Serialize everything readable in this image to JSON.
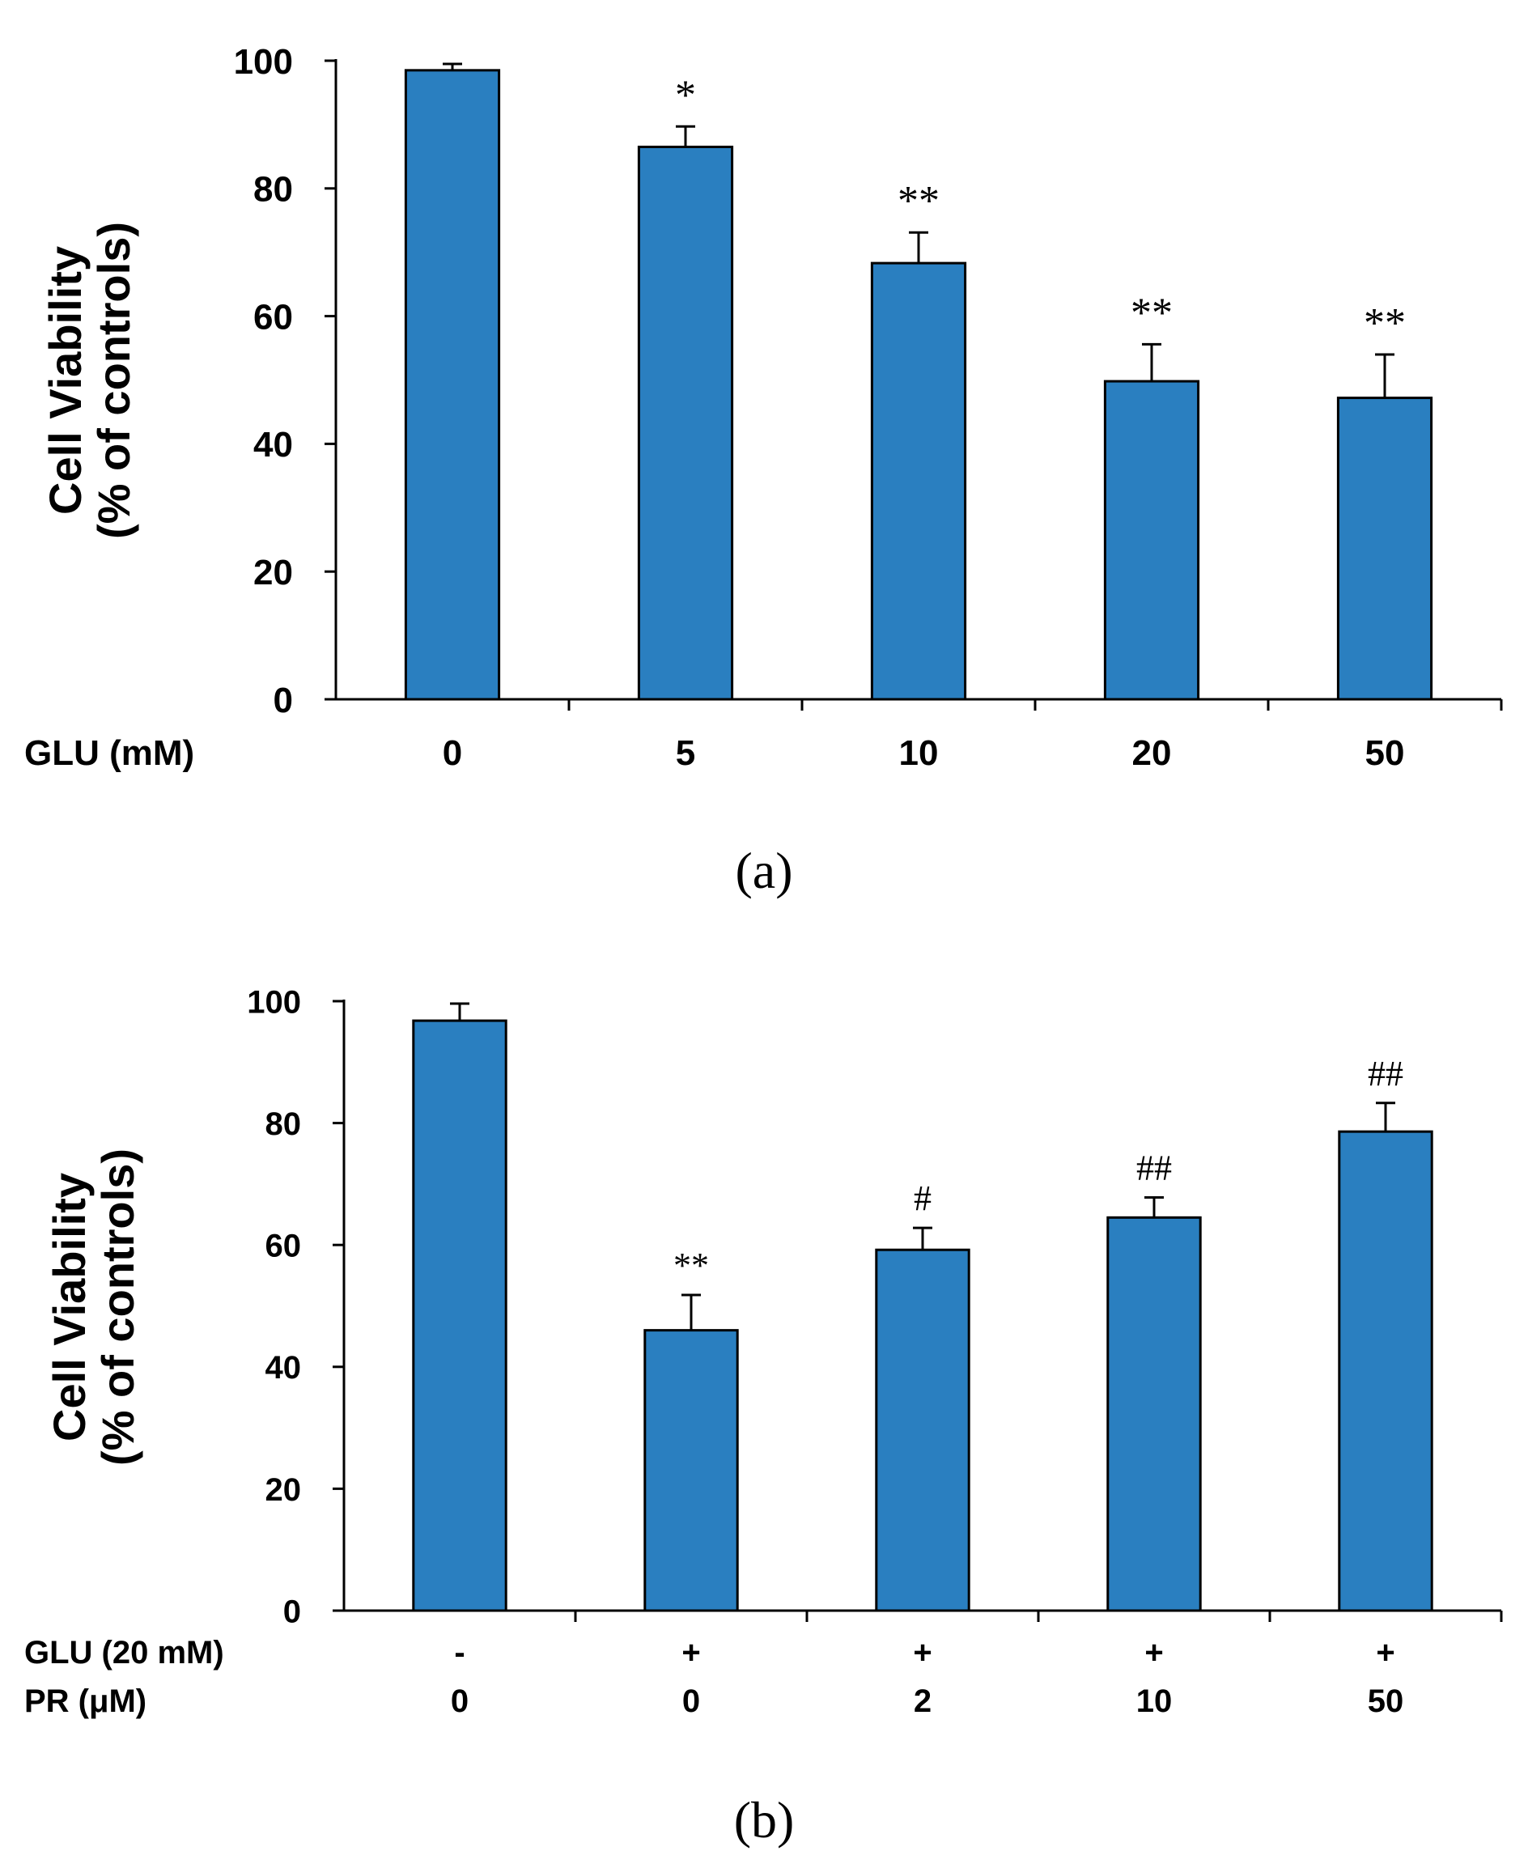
{
  "colors": {
    "bar": "#2a7fc0",
    "axis": "#000000"
  },
  "chart_data": [
    {
      "type": "bar",
      "panel_label": "(a)",
      "ylabel_lines": [
        "Cell Viability",
        "(% of controls)"
      ],
      "ylim": [
        0,
        100
      ],
      "yticks": [
        0,
        20,
        40,
        60,
        80,
        100
      ],
      "row_labels": [
        "GLU (mM)"
      ],
      "categories": [
        [
          "0"
        ],
        [
          "5"
        ],
        [
          "10"
        ],
        [
          "20"
        ],
        [
          "50"
        ]
      ],
      "values": [
        98.5,
        86.5,
        68.3,
        49.8,
        47.2
      ],
      "errors": [
        1.0,
        3.2,
        4.8,
        5.8,
        6.8
      ],
      "annotations": [
        "",
        "*",
        "**",
        "**",
        "**"
      ]
    },
    {
      "type": "bar",
      "panel_label": "(b)",
      "ylabel_lines": [
        "Cell Viability",
        "(% of controls)"
      ],
      "ylim": [
        0,
        100
      ],
      "yticks": [
        0,
        20,
        40,
        60,
        80,
        100
      ],
      "row_labels": [
        "GLU (20 mM)",
        "PR (μM)"
      ],
      "categories": [
        [
          "-",
          "0"
        ],
        [
          "+",
          "0"
        ],
        [
          "+",
          "2"
        ],
        [
          "+",
          "10"
        ],
        [
          "+",
          "50"
        ]
      ],
      "values": [
        96.8,
        46.0,
        59.2,
        64.5,
        78.6
      ],
      "errors": [
        2.8,
        5.8,
        3.6,
        3.3,
        4.7
      ],
      "annotations": [
        "",
        "**",
        "#",
        "##",
        "##"
      ]
    }
  ]
}
